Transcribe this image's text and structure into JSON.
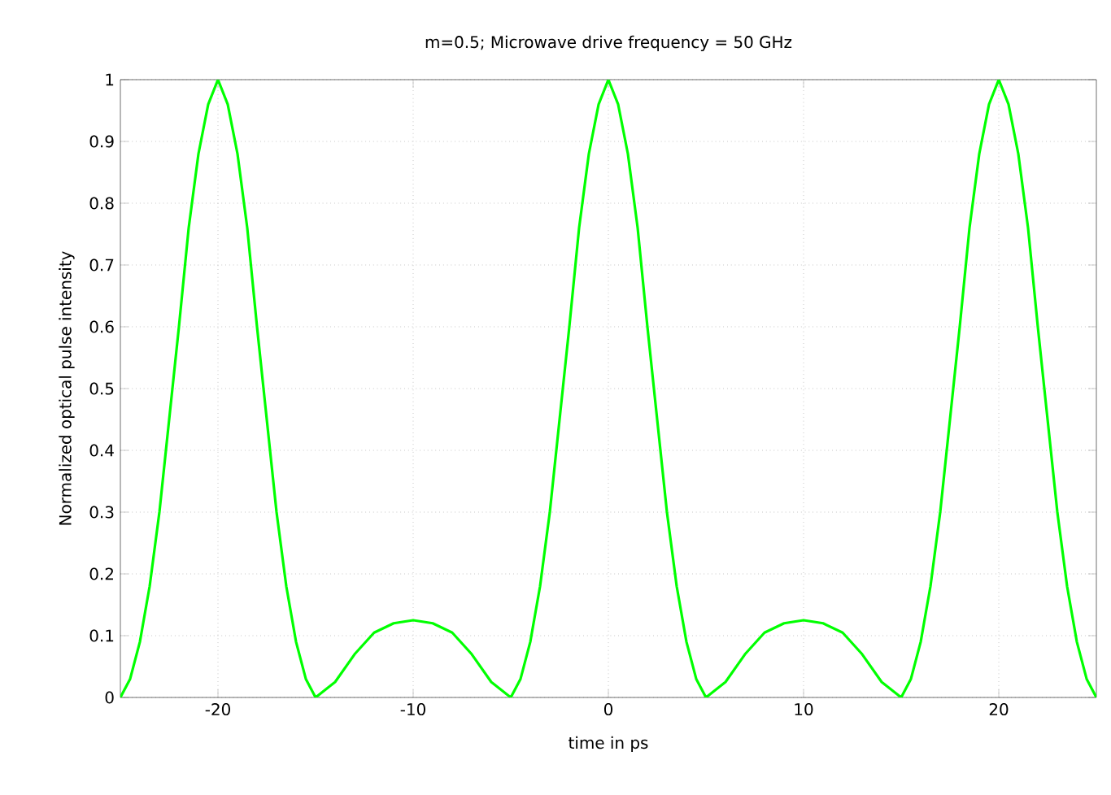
{
  "chart_data": {
    "type": "line",
    "title": "m=0.5; Microwave drive frequency = 50 GHz",
    "xlabel": "time in ps",
    "ylabel": "Normalized optical pulse intensity",
    "xlim": [
      -25,
      25
    ],
    "ylim": [
      0,
      1
    ],
    "xticks": [
      -20,
      -10,
      0,
      10,
      20
    ],
    "yticks": [
      0,
      0.1,
      0.2,
      0.3,
      0.4,
      0.5,
      0.6,
      0.7,
      0.8,
      0.9,
      1
    ],
    "grid": true,
    "marker": "none",
    "line_style": "solid",
    "series": [
      {
        "color": "#00ff00",
        "x": [
          -25,
          -24.5,
          -24,
          -23.5,
          -23,
          -22.5,
          -22,
          -21.5,
          -21,
          -20.5,
          -20,
          -19.5,
          -19,
          -18.5,
          -18,
          -17.5,
          -17,
          -16.5,
          -16,
          -15.5,
          -15,
          -14,
          -13,
          -12,
          -11,
          -10,
          -9,
          -8,
          -7,
          -6,
          -5,
          -4.5,
          -4,
          -3.5,
          -3,
          -2.5,
          -2,
          -1.5,
          -1,
          -0.5,
          0,
          0.5,
          1,
          1.5,
          2,
          2.5,
          3,
          3.5,
          4,
          4.5,
          5,
          6,
          7,
          8,
          9,
          10,
          11,
          12,
          13,
          14,
          15,
          15.5,
          16,
          16.5,
          17,
          17.5,
          18,
          18.5,
          19,
          19.5,
          20,
          20.5,
          21,
          21.5,
          22,
          22.5,
          23,
          23.5,
          24,
          24.5,
          25
        ],
        "values": [
          0,
          0.03,
          0.09,
          0.18,
          0.3,
          0.45,
          0.6,
          0.76,
          0.88,
          0.96,
          1,
          0.96,
          0.88,
          0.76,
          0.6,
          0.45,
          0.3,
          0.18,
          0.09,
          0.03,
          0,
          0.025,
          0.07,
          0.105,
          0.12,
          0.125,
          0.12,
          0.105,
          0.07,
          0.025,
          0,
          0.03,
          0.09,
          0.18,
          0.3,
          0.45,
          0.6,
          0.76,
          0.88,
          0.96,
          1,
          0.96,
          0.88,
          0.76,
          0.6,
          0.45,
          0.3,
          0.18,
          0.09,
          0.03,
          0,
          0.025,
          0.07,
          0.105,
          0.12,
          0.125,
          0.12,
          0.105,
          0.07,
          0.025,
          0,
          0.03,
          0.09,
          0.18,
          0.3,
          0.45,
          0.6,
          0.76,
          0.88,
          0.96,
          1,
          0.96,
          0.88,
          0.76,
          0.6,
          0.45,
          0.3,
          0.18,
          0.09,
          0.03,
          0
        ]
      }
    ]
  }
}
